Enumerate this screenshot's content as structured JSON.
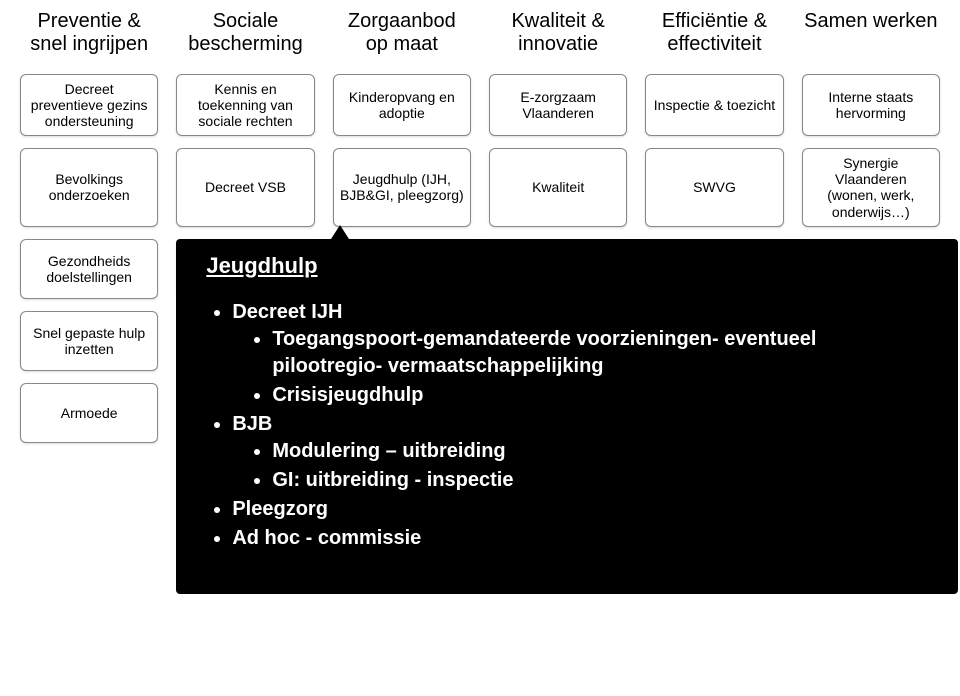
{
  "columns": [
    {
      "header": "Preventie & snel ingrijpen"
    },
    {
      "header": "Sociale bescherming"
    },
    {
      "header": "Zorgaanbod op maat"
    },
    {
      "header": "Kwaliteit & innovatie"
    },
    {
      "header": "Efficiëntie & effectiviteit"
    },
    {
      "header": "Samen werken"
    }
  ],
  "row1": [
    "Decreet preventieve gezins ondersteuning",
    "Kennis en toekenning van sociale rechten",
    "Kinderopvang en adoptie",
    "E-zorgzaam Vlaanderen",
    "Inspectie & toezicht",
    "Interne staats hervorming"
  ],
  "row2": [
    "Bevolkings onderzoeken",
    "Decreet VSB",
    "Jeugdhulp (IJH, BJB&GI, pleegzorg)",
    "Kwaliteit",
    "SWVG",
    "Synergie Vlaanderen (wonen, werk, onderwijs…)"
  ],
  "leftCol": {
    "a": "Gezondheids doelstellingen",
    "b": "Snel gepaste hulp inzetten",
    "c": "Armoede"
  },
  "overlay": {
    "title": "Jeugdhulp",
    "items": [
      {
        "text": "Decreet IJH",
        "children": [
          "Toegangspoort-gemandateerde voorzieningen- eventueel pilootregio- vermaatschappelijking",
          "Crisisjeugdhulp"
        ]
      },
      {
        "text": "BJB",
        "children": [
          "Modulering – uitbreiding",
          "GI: uitbreiding - inspectie"
        ]
      },
      {
        "text": "Pleegzorg"
      },
      {
        "text": "Ad hoc - commissie"
      }
    ]
  },
  "colors": {
    "overlay_bg": "#000000",
    "overlay_text": "#ffffff",
    "box_border": "#888888",
    "ghost_border": "#dddddd",
    "page_bg": "#ffffff"
  }
}
